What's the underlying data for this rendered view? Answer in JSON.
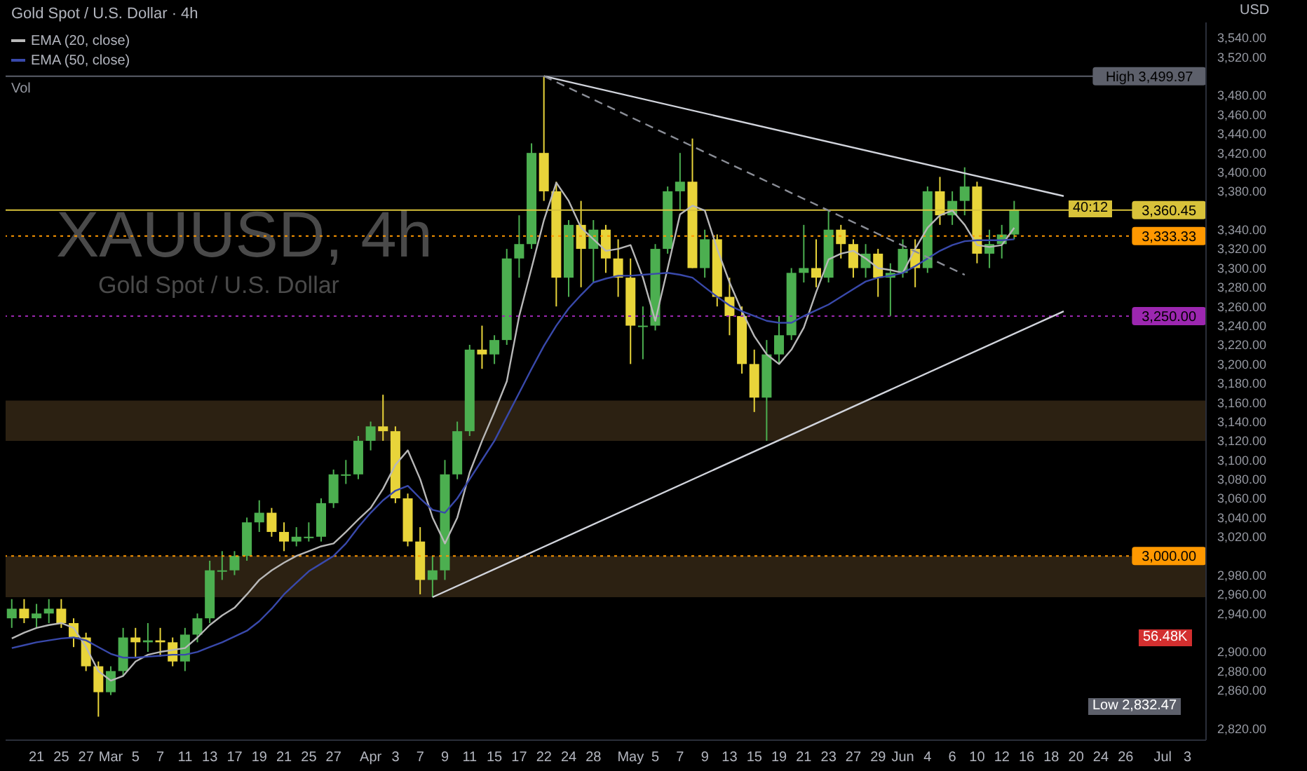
{
  "chart_data": {
    "type": "candlestick",
    "title": "Gold Spot / U.S. Dollar · 4h",
    "ylabel": "USD",
    "categories": [
      null,
      null,
      "21",
      null,
      "25",
      null,
      "27",
      null,
      "Mar",
      null,
      "5",
      null,
      "7",
      null,
      "11",
      null,
      "13",
      null,
      "17",
      null,
      "19",
      null,
      "21",
      null,
      "25",
      null,
      "27",
      null,
      null,
      "Apr",
      null,
      "3",
      null,
      "7",
      null,
      "9",
      null,
      "11",
      null,
      "15",
      null,
      "17",
      null,
      "22",
      null,
      "24",
      null,
      "28",
      null,
      null,
      "May",
      null,
      "5",
      null,
      "7",
      null,
      "9",
      null,
      "13",
      null,
      "15",
      null,
      "19",
      null,
      "21",
      null,
      "23",
      null,
      "27",
      null,
      "29",
      null,
      "Jun",
      null,
      "4",
      null,
      "6",
      null,
      "10",
      null,
      "12",
      null,
      "16",
      null,
      "18",
      null,
      "20",
      null,
      "24",
      null,
      "26",
      null,
      null,
      "Jul",
      null,
      "3",
      null
    ],
    "ohlc": [
      [
        2935,
        2955,
        2925,
        2945
      ],
      [
        2945,
        2955,
        2930,
        2935
      ],
      [
        2935,
        2950,
        2925,
        2940
      ],
      [
        2940,
        2955,
        2930,
        2945
      ],
      [
        2945,
        2955,
        2925,
        2930
      ],
      [
        2930,
        2935,
        2905,
        2915
      ],
      [
        2915,
        2920,
        2880,
        2885
      ],
      [
        2885,
        2890,
        2832.47,
        2858
      ],
      [
        2858,
        2885,
        2855,
        2880
      ],
      [
        2880,
        2925,
        2875,
        2915
      ],
      [
        2915,
        2925,
        2895,
        2910
      ],
      [
        2910,
        2930,
        2900,
        2912
      ],
      [
        2912,
        2925,
        2895,
        2910
      ],
      [
        2910,
        2915,
        2885,
        2890
      ],
      [
        2890,
        2925,
        2880,
        2918
      ],
      [
        2918,
        2940,
        2910,
        2935
      ],
      [
        2935,
        2995,
        2930,
        2985
      ],
      [
        2985,
        3005,
        2975,
        2985
      ],
      [
        2985,
        3005,
        2980,
        3000
      ],
      [
        3000,
        3040,
        2995,
        3035
      ],
      [
        3035,
        3058,
        3025,
        3045
      ],
      [
        3045,
        3050,
        3020,
        3025
      ],
      [
        3025,
        3035,
        3005,
        3015
      ],
      [
        3015,
        3030,
        3010,
        3020
      ],
      [
        3020,
        3035,
        3015,
        3020
      ],
      [
        3020,
        3060,
        3015,
        3055
      ],
      [
        3055,
        3090,
        3050,
        3085
      ],
      [
        3085,
        3100,
        3075,
        3085
      ],
      [
        3085,
        3125,
        3080,
        3120
      ],
      [
        3120,
        3140,
        3110,
        3135
      ],
      [
        3135,
        3168,
        3120,
        3130
      ],
      [
        3130,
        3135,
        3055,
        3060
      ],
      [
        3060,
        3065,
        3010,
        3015
      ],
      [
        3015,
        3030,
        2960,
        2975
      ],
      [
        2975,
        3000,
        2957,
        2985
      ],
      [
        2985,
        3100,
        2975,
        3085
      ],
      [
        3085,
        3140,
        3080,
        3130
      ],
      [
        3130,
        3220,
        3125,
        3215
      ],
      [
        3215,
        3240,
        3195,
        3210
      ],
      [
        3210,
        3230,
        3200,
        3225
      ],
      [
        3225,
        3320,
        3220,
        3310
      ],
      [
        3310,
        3355,
        3290,
        3325
      ],
      [
        3325,
        3430,
        3320,
        3420
      ],
      [
        3420,
        3499.97,
        3370,
        3380
      ],
      [
        3380,
        3390,
        3260,
        3290
      ],
      [
        3290,
        3350,
        3270,
        3345
      ],
      [
        3345,
        3370,
        3280,
        3320
      ],
      [
        3320,
        3350,
        3285,
        3340
      ],
      [
        3340,
        3345,
        3295,
        3310
      ],
      [
        3310,
        3330,
        3270,
        3290
      ],
      [
        3290,
        3310,
        3200,
        3240
      ],
      [
        3240,
        3260,
        3205,
        3240
      ],
      [
        3240,
        3325,
        3235,
        3320
      ],
      [
        3320,
        3385,
        3315,
        3380
      ],
      [
        3380,
        3420,
        3360,
        3390
      ],
      [
        3390,
        3435,
        3300,
        3300
      ],
      [
        3300,
        3340,
        3290,
        3330
      ],
      [
        3330,
        3335,
        3260,
        3270
      ],
      [
        3270,
        3290,
        3230,
        3250
      ],
      [
        3250,
        3260,
        3190,
        3200
      ],
      [
        3200,
        3215,
        3150,
        3165
      ],
      [
        3165,
        3225,
        3120,
        3210
      ],
      [
        3210,
        3250,
        3200,
        3230
      ],
      [
        3230,
        3300,
        3225,
        3295
      ],
      [
        3295,
        3345,
        3285,
        3300
      ],
      [
        3300,
        3330,
        3280,
        3290
      ],
      [
        3290,
        3360,
        3285,
        3340
      ],
      [
        3340,
        3345,
        3310,
        3325
      ],
      [
        3325,
        3330,
        3290,
        3300
      ],
      [
        3300,
        3325,
        3290,
        3315
      ],
      [
        3315,
        3320,
        3270,
        3290
      ],
      [
        3290,
        3305,
        3250,
        3295
      ],
      [
        3295,
        3330,
        3290,
        3320
      ],
      [
        3320,
        3330,
        3280,
        3300
      ],
      [
        3300,
        3385,
        3295,
        3380
      ],
      [
        3380,
        3395,
        3345,
        3355
      ],
      [
        3355,
        3380,
        3345,
        3370
      ],
      [
        3370,
        3405,
        3355,
        3385
      ],
      [
        3385,
        3390,
        3305,
        3315
      ],
      [
        3315,
        3340,
        3300,
        3325
      ],
      [
        3325,
        3345,
        3310,
        3335
      ],
      [
        3335,
        3370,
        3330,
        3360.45
      ],
      null,
      null,
      null,
      null,
      null,
      null,
      null,
      null,
      null,
      null,
      null,
      null,
      null,
      null,
      null
    ],
    "colors": [
      "#4caf50",
      "#e8d43a",
      "#4caf50",
      "#4caf50",
      "#e8d43a",
      "#e8d43a",
      "#e8d43a",
      "#e8d43a",
      "#4caf50",
      "#4caf50",
      "#e8d43a",
      "#4caf50",
      "#e8d43a",
      "#e8d43a",
      "#4caf50",
      "#4caf50",
      "#4caf50",
      "#4caf50",
      "#4caf50",
      "#4caf50",
      "#4caf50",
      "#e8d43a",
      "#e8d43a",
      "#4caf50",
      "#4caf50",
      "#4caf50",
      "#4caf50",
      "#4caf50",
      "#4caf50",
      "#4caf50",
      "#e8d43a",
      "#e8d43a",
      "#e8d43a",
      "#e8d43a",
      "#4caf50",
      "#4caf50",
      "#4caf50",
      "#4caf50",
      "#e8d43a",
      "#4caf50",
      "#4caf50",
      "#4caf50",
      "#4caf50",
      "#e8d43a",
      "#e8d43a",
      "#4caf50",
      "#e8d43a",
      "#4caf50",
      "#e8d43a",
      "#e8d43a",
      "#e8d43a",
      "#4caf50",
      "#4caf50",
      "#4caf50",
      "#4caf50",
      "#e8d43a",
      "#4caf50",
      "#e8d43a",
      "#e8d43a",
      "#e8d43a",
      "#e8d43a",
      "#4caf50",
      "#4caf50",
      "#4caf50",
      "#4caf50",
      "#e8d43a",
      "#4caf50",
      "#e8d43a",
      "#e8d43a",
      "#4caf50",
      "#e8d43a",
      "#4caf50",
      "#4caf50",
      "#e8d43a",
      "#4caf50",
      "#e8d43a",
      "#4caf50",
      "#4caf50",
      "#e8d43a",
      "#4caf50",
      "#4caf50",
      "#4caf50",
      null,
      null,
      null,
      null,
      null,
      null,
      null,
      null,
      null,
      null,
      null,
      null,
      null,
      null,
      null
    ],
    "series": [
      {
        "name": "EMA (20, close)",
        "type": "line",
        "color": "#b8b8b8",
        "values": [
          2914,
          2920,
          2925,
          2928,
          2930,
          2925,
          2905,
          2880,
          2870,
          2875,
          2890,
          2897,
          2900,
          2902,
          2904,
          2915,
          2928,
          2938,
          2946,
          2960,
          2975,
          2985,
          2993,
          3000,
          3005,
          3010,
          3013,
          3025,
          3038,
          3050,
          3070,
          3095,
          3110,
          3080,
          3040,
          3013,
          3040,
          3087,
          3120,
          3150,
          3182,
          3250,
          3300,
          3350,
          3389,
          3370,
          3342,
          3330,
          3318,
          3320,
          3324,
          3290,
          3245,
          3300,
          3356,
          3365,
          3360,
          3320,
          3285,
          3255,
          3229,
          3210,
          3200,
          3215,
          3238,
          3275,
          3309,
          3315,
          3318,
          3310,
          3300,
          3298,
          3295,
          3320,
          3342,
          3355,
          3360,
          3345,
          3324,
          3322,
          3324,
          3342,
          null,
          null,
          null,
          null,
          null,
          null,
          null,
          null,
          null,
          null,
          null,
          null,
          null,
          null,
          null
        ]
      },
      {
        "name": "EMA (50, close)",
        "type": "line",
        "color": "#3949ab",
        "values": [
          2904,
          2907,
          2910,
          2912,
          2914,
          2915,
          2912,
          2905,
          2898,
          2894,
          2894,
          2895,
          2896,
          2897,
          2897,
          2900,
          2905,
          2910,
          2916,
          2922,
          2932,
          2945,
          2960,
          2972,
          2984,
          2992,
          3000,
          3013,
          3030,
          3045,
          3058,
          3068,
          3073,
          3060,
          3048,
          3045,
          3060,
          3080,
          3100,
          3120,
          3145,
          3170,
          3195,
          3219,
          3240,
          3258,
          3272,
          3285,
          3289,
          3292,
          3292,
          3293,
          3294,
          3295,
          3293,
          3290,
          3280,
          3270,
          3261,
          3255,
          3250,
          3245,
          3243,
          3243,
          3250,
          3256,
          3262,
          3270,
          3278,
          3286,
          3290,
          3292,
          3295,
          3302,
          3310,
          3318,
          3324,
          3328,
          3329,
          3329,
          3329,
          3330,
          null,
          null,
          null,
          null,
          null,
          null,
          null,
          null,
          null,
          null,
          null,
          null,
          null,
          null,
          null
        ]
      },
      {
        "type": "line",
        "color": "#d1d4dc",
        "values": [
          null,
          null,
          null,
          null,
          null,
          null,
          null,
          null,
          null,
          null,
          null,
          null,
          null,
          null,
          null,
          null,
          null,
          null,
          null,
          null,
          null,
          null,
          null,
          null,
          null,
          null,
          null,
          null,
          null,
          null,
          null,
          null,
          null,
          null,
          null,
          null,
          null,
          null,
          null,
          null,
          null,
          null,
          null,
          3499.97,
          null,
          null,
          null,
          null,
          null,
          null,
          null,
          null,
          null,
          null,
          null,
          null,
          null,
          null,
          null,
          null,
          null,
          null,
          null,
          null,
          null,
          null,
          null,
          null,
          null,
          null,
          null,
          null,
          null,
          null,
          null,
          null,
          null,
          null,
          null,
          null,
          null,
          null,
          null,
          null,
          null,
          3375,
          null,
          null,
          null,
          null,
          null,
          null,
          null,
          null,
          null,
          null,
          null
        ]
      },
      {
        "type": "line",
        "color": "#d1d4dc",
        "values": [
          null,
          null,
          null,
          null,
          null,
          null,
          null,
          null,
          null,
          null,
          null,
          null,
          null,
          null,
          null,
          null,
          null,
          null,
          null,
          null,
          null,
          null,
          null,
          null,
          null,
          null,
          null,
          null,
          null,
          null,
          null,
          null,
          null,
          null,
          2957,
          null,
          null,
          null,
          null,
          null,
          null,
          null,
          null,
          null,
          null,
          null,
          null,
          null,
          null,
          null,
          null,
          null,
          null,
          null,
          null,
          null,
          null,
          null,
          null,
          null,
          null,
          null,
          null,
          null,
          null,
          null,
          null,
          null,
          null,
          null,
          null,
          null,
          null,
          null,
          null,
          null,
          null,
          null,
          null,
          null,
          null,
          null,
          null,
          null,
          null,
          3255,
          null,
          null,
          null,
          null,
          null,
          null,
          null,
          null,
          null,
          null,
          null
        ]
      },
      {
        "type": "line",
        "color": "#8a8d96",
        "line_style": "dashed",
        "values": [
          null,
          null,
          null,
          null,
          null,
          null,
          null,
          null,
          null,
          null,
          null,
          null,
          null,
          null,
          null,
          null,
          null,
          null,
          null,
          null,
          null,
          null,
          null,
          null,
          null,
          null,
          null,
          null,
          null,
          null,
          null,
          null,
          null,
          null,
          null,
          null,
          null,
          null,
          null,
          null,
          null,
          null,
          null,
          3499.97,
          null,
          null,
          null,
          null,
          null,
          null,
          null,
          null,
          null,
          null,
          null,
          null,
          null,
          null,
          null,
          null,
          null,
          null,
          null,
          null,
          null,
          null,
          null,
          null,
          null,
          null,
          null,
          null,
          null,
          null,
          null,
          null,
          null,
          3293,
          null,
          null,
          null,
          null,
          null,
          null,
          null,
          null,
          null,
          null,
          null,
          null,
          null,
          null,
          null,
          null,
          null,
          null,
          null
        ]
      }
    ],
    "ylim": [
      2808,
      3556
    ],
    "yticks": [
      {
        "value": 2820,
        "label": "2,820.00"
      },
      {
        "value": 2860,
        "label": "2,860.00"
      },
      {
        "value": 2880,
        "label": "2,880.00"
      },
      {
        "value": 2900,
        "label": "2,900.00"
      },
      {
        "value": 2940,
        "label": "2,940.00"
      },
      {
        "value": 2960,
        "label": "2,960.00"
      },
      {
        "value": 2980,
        "label": "2,980.00"
      },
      {
        "value": 3020,
        "label": "3,020.00"
      },
      {
        "value": 3040,
        "label": "3,040.00"
      },
      {
        "value": 3060,
        "label": "3,060.00"
      },
      {
        "value": 3080,
        "label": "3,080.00"
      },
      {
        "value": 3100,
        "label": "3,100.00"
      },
      {
        "value": 3120,
        "label": "3,120.00"
      },
      {
        "value": 3140,
        "label": "3,140.00"
      },
      {
        "value": 3160,
        "label": "3,160.00"
      },
      {
        "value": 3180,
        "label": "3,180.00"
      },
      {
        "value": 3200,
        "label": "3,200.00"
      },
      {
        "value": 3220,
        "label": "3,220.00"
      },
      {
        "value": 3240,
        "label": "3,240.00"
      },
      {
        "value": 3260,
        "label": "3,260.00"
      },
      {
        "value": 3280,
        "label": "3,280.00"
      },
      {
        "value": 3300,
        "label": "3,300.00"
      },
      {
        "value": 3320,
        "label": "3,320.00"
      },
      {
        "value": 3340,
        "label": "3,340.00"
      },
      {
        "value": 3380,
        "label": "3,380.00"
      },
      {
        "value": 3400,
        "label": "3,400.00"
      },
      {
        "value": 3420,
        "label": "3,420.00"
      },
      {
        "value": 3440,
        "label": "3,440.00"
      },
      {
        "value": 3460,
        "label": "3,460.00"
      },
      {
        "value": 3480,
        "label": "3,480.00"
      },
      {
        "value": 3520,
        "label": "3,520.00"
      },
      {
        "value": 3540,
        "label": "3,540.00"
      }
    ],
    "ref_lines": [
      {
        "axis": "y",
        "value": 3499.97,
        "label": "High 3,499.97",
        "color": "#5d606b"
      },
      {
        "axis": "y",
        "value": 3360.45,
        "label": "3,360.45",
        "color": "#d8c23a"
      },
      {
        "axis": "y",
        "value": 3333.33,
        "label": "3,333.33",
        "color": "#ff9800",
        "line_style": "dotted"
      },
      {
        "axis": "y",
        "value": 3250,
        "label": "3,250.00",
        "color": "#9c27b0",
        "line_style": "dotted"
      },
      {
        "axis": "y",
        "value": 3000,
        "label": "3,000.00",
        "color": "#ff9800",
        "line_style": "dotted"
      }
    ],
    "bands": [
      {
        "axis": "y",
        "from": 3120,
        "to": 3162,
        "color": "#2c2112"
      },
      {
        "axis": "y",
        "from": 2957,
        "to": 3000,
        "color": "#2c2112"
      }
    ],
    "annotations": [
      "XAUUSD, 4h",
      "Gold Spot / U.S. Dollar",
      "Vol",
      "40:12",
      "56.48K",
      "Low 2,832.47"
    ],
    "legend": "top left"
  }
}
